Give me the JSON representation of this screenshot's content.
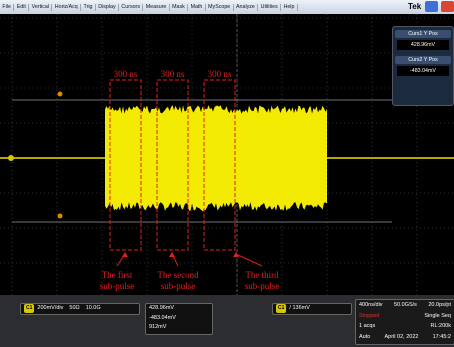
{
  "menu": {
    "items": [
      "File",
      "Edit",
      "Vertical",
      "Horiz/Acq",
      "Trig",
      "Display",
      "Cursors",
      "Measure",
      "Mask",
      "Math",
      "MyScope",
      "Analyze",
      "Utilities",
      "Help"
    ],
    "brand": "Tek"
  },
  "cursor_readout": [
    {
      "label": "Curs1 Y Pos",
      "value": "428.96mV"
    },
    {
      "label": "Curs2 Y Pos",
      "value": "-483.04mV"
    }
  ],
  "annotations": {
    "intervals": [
      "300 ns",
      "300 ns",
      "300 ns"
    ],
    "sub_pulses": [
      [
        "The first",
        "sub-pulse"
      ],
      [
        "The second",
        "sub-pulse"
      ],
      [
        "The third",
        "sub-pulse"
      ]
    ]
  },
  "status": {
    "channel": {
      "badge": "C1",
      "scale": "200mV/div",
      "impedance": "50Ω",
      "bandwidth": "10.0G"
    },
    "readouts": [
      "428.96mV",
      "-483.04mV",
      "912mV"
    ],
    "trigger": {
      "badge": "C1",
      "level": "136mV"
    },
    "acquisition": [
      [
        "400ns/div",
        "50.0GS/s",
        "20.0ps/pt"
      ],
      [
        "Stopped",
        "Single Seq"
      ],
      [
        "1 acqs",
        "RL:200k"
      ],
      [
        "Auto",
        "April 02, 2022",
        "17:45:2"
      ]
    ]
  }
}
